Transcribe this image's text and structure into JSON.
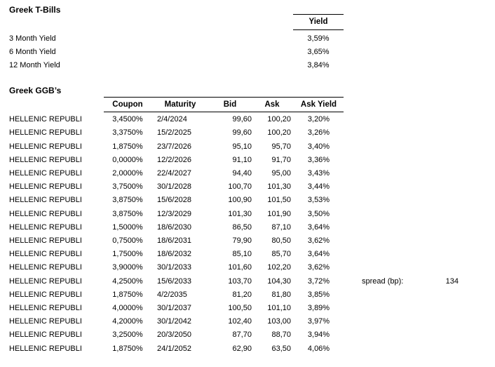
{
  "tbills": {
    "title": "Greek T-Bills",
    "yield_header": "Yield",
    "rows": [
      {
        "label": "3 Month Yield",
        "value": "3,59%"
      },
      {
        "label": "6 Month Yield",
        "value": "3,65%"
      },
      {
        "label": "12 Month Yield",
        "value": "3,84%"
      }
    ]
  },
  "ggbs": {
    "title": "Greek GGB’s",
    "issuer": "HELLENIC REPUBLI",
    "columns": {
      "coupon": "Coupon",
      "maturity": "Maturity",
      "bid": "Bid",
      "ask": "Ask",
      "ask_yield": "Ask Yield"
    },
    "rows": [
      {
        "coupon": "3,4500%",
        "maturity": "2/4/2024",
        "bid": "99,60",
        "ask": "100,20",
        "ask_yield": "3,20%"
      },
      {
        "coupon": "3,3750%",
        "maturity": "15/2/2025",
        "bid": "99,60",
        "ask": "100,20",
        "ask_yield": "3,26%"
      },
      {
        "coupon": "1,8750%",
        "maturity": "23/7/2026",
        "bid": "95,10",
        "ask": "95,70",
        "ask_yield": "3,40%"
      },
      {
        "coupon": "0,0000%",
        "maturity": "12/2/2026",
        "bid": "91,10",
        "ask": "91,70",
        "ask_yield": "3,36%"
      },
      {
        "coupon": "2,0000%",
        "maturity": "22/4/2027",
        "bid": "94,40",
        "ask": "95,00",
        "ask_yield": "3,43%"
      },
      {
        "coupon": "3,7500%",
        "maturity": "30/1/2028",
        "bid": "100,70",
        "ask": "101,30",
        "ask_yield": "3,44%"
      },
      {
        "coupon": "3,8750%",
        "maturity": "15/6/2028",
        "bid": "100,90",
        "ask": "101,50",
        "ask_yield": "3,53%"
      },
      {
        "coupon": "3,8750%",
        "maturity": "12/3/2029",
        "bid": "101,30",
        "ask": "101,90",
        "ask_yield": "3,50%"
      },
      {
        "coupon": "1,5000%",
        "maturity": "18/6/2030",
        "bid": "86,50",
        "ask": "87,10",
        "ask_yield": "3,64%"
      },
      {
        "coupon": "0,7500%",
        "maturity": "18/6/2031",
        "bid": "79,90",
        "ask": "80,50",
        "ask_yield": "3,62%"
      },
      {
        "coupon": "1,7500%",
        "maturity": "18/6/2032",
        "bid": "85,10",
        "ask": "85,70",
        "ask_yield": "3,64%"
      },
      {
        "coupon": "3,9000%",
        "maturity": "30/1/2033",
        "bid": "101,60",
        "ask": "102,20",
        "ask_yield": "3,62%"
      },
      {
        "coupon": "4,2500%",
        "maturity": "15/6/2033",
        "bid": "103,70",
        "ask": "104,30",
        "ask_yield": "3,72%"
      },
      {
        "coupon": "1,8750%",
        "maturity": "4/2/2035",
        "bid": "81,20",
        "ask": "81,80",
        "ask_yield": "3,85%"
      },
      {
        "coupon": "4,0000%",
        "maturity": "30/1/2037",
        "bid": "100,50",
        "ask": "101,10",
        "ask_yield": "3,89%"
      },
      {
        "coupon": "4,2000%",
        "maturity": "30/1/2042",
        "bid": "102,40",
        "ask": "103,00",
        "ask_yield": "3,97%"
      },
      {
        "coupon": "3,2500%",
        "maturity": "20/3/2050",
        "bid": "87,70",
        "ask": "88,70",
        "ask_yield": "3,94%"
      },
      {
        "coupon": "1,8750%",
        "maturity": "24/1/2052",
        "bid": "62,90",
        "ask": "63,50",
        "ask_yield": "4,06%"
      }
    ]
  },
  "spread": {
    "label": "spread (bp):",
    "value": "134"
  },
  "colors": {
    "text": "#000000",
    "background": "#ffffff",
    "rule": "#000000"
  }
}
